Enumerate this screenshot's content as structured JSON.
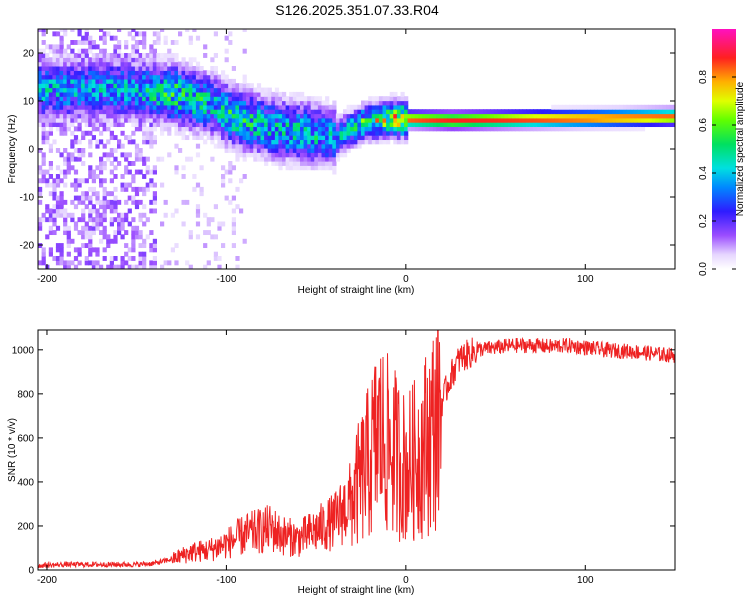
{
  "figure_title": "S126.2025.351.07.33.R04",
  "colors": {
    "snr_line": "#ee2222",
    "frame": "#000000"
  },
  "chart_data": [
    {
      "type": "heatmap",
      "title": "S126.2025.351.07.33.R04",
      "xlabel": "Height of straight line (km)",
      "ylabel": "Frequency (Hz)",
      "xlim": [
        -205,
        150
      ],
      "ylim": [
        -25,
        25
      ],
      "xticks": [
        -200,
        -100,
        0,
        100
      ],
      "xtick_labels": [
        "-200",
        "-100",
        "0",
        "100"
      ],
      "yticks": [
        -20,
        -10,
        0,
        10,
        20
      ],
      "ytick_labels": [
        "-20",
        "-10",
        "0",
        "10",
        "20"
      ],
      "colorbar": {
        "label": "Normalized spectral amplitude",
        "range": [
          0,
          1
        ],
        "ticks": [
          0,
          0.2,
          0.4,
          0.6,
          0.8
        ],
        "tick_labels": [
          "0.0",
          "0.2",
          "0.4",
          "0.6",
          "0.8"
        ]
      },
      "ridge": [
        {
          "h": -150,
          "f": 12,
          "a": 0.4
        },
        {
          "h": -130,
          "f": 11,
          "a": 0.55
        },
        {
          "h": -110,
          "f": 9,
          "a": 0.45
        },
        {
          "h": -95,
          "f": 6,
          "a": 0.5
        },
        {
          "h": -75,
          "f": 4,
          "a": 0.45
        },
        {
          "h": -55,
          "f": 3,
          "a": 0.45
        },
        {
          "h": -40,
          "f": 2,
          "a": 0.4
        },
        {
          "h": -25,
          "f": 5,
          "a": 0.55
        },
        {
          "h": -10,
          "f": 6,
          "a": 0.75
        },
        {
          "h": 0,
          "f": 5.8,
          "a": 0.85
        },
        {
          "h": 25,
          "f": 5.6,
          "a": 0.88
        },
        {
          "h": 60,
          "f": 5.8,
          "a": 0.88
        },
        {
          "h": 100,
          "f": 6,
          "a": 0.88
        },
        {
          "h": 150,
          "f": 6.3,
          "a": 0.85
        }
      ]
    },
    {
      "type": "line",
      "xlabel": "Height of straight line (km)",
      "ylabel": "SNR (10 * v/v)",
      "xlim": [
        -205,
        150
      ],
      "ylim": [
        0,
        1090
      ],
      "xticks": [
        -200,
        -100,
        0,
        100
      ],
      "xtick_labels": [
        "-200",
        "-100",
        "0",
        "100"
      ],
      "yticks": [
        0,
        200,
        400,
        600,
        800,
        1000
      ],
      "ytick_labels": [
        "0",
        "200",
        "400",
        "600",
        "800",
        "1000"
      ],
      "series": [
        {
          "name": "SNR",
          "x": [
            -205,
            -190,
            -170,
            -150,
            -140,
            -130,
            -120,
            -110,
            -100,
            -90,
            -80,
            -75,
            -70,
            -60,
            -50,
            -40,
            -30,
            -20,
            -15,
            -10,
            -5,
            0,
            5,
            10,
            15,
            20,
            25,
            30,
            40,
            50,
            60,
            70,
            80,
            90,
            100,
            110,
            120,
            130,
            140,
            150
          ],
          "y": [
            20,
            25,
            25,
            25,
            30,
            50,
            80,
            90,
            120,
            160,
            180,
            190,
            160,
            140,
            180,
            220,
            320,
            500,
            620,
            560,
            520,
            460,
            500,
            560,
            640,
            760,
            880,
            960,
            1000,
            1010,
            1020,
            1020,
            1015,
            1020,
            1010,
            1000,
            995,
            990,
            980,
            975
          ]
        }
      ]
    }
  ]
}
